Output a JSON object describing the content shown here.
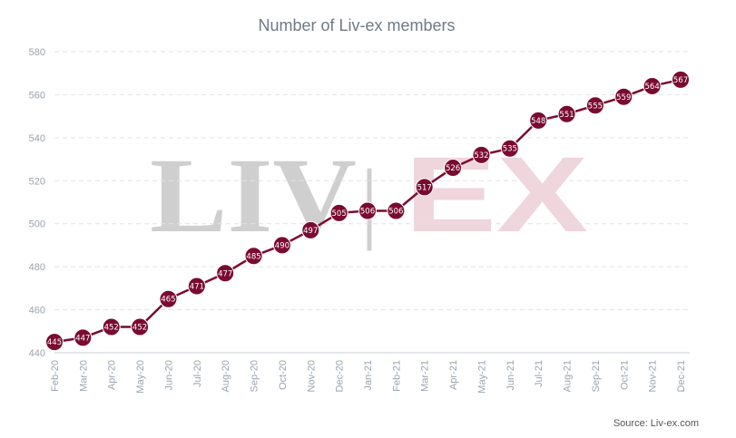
{
  "chart_data": {
    "type": "line",
    "title": "Number of Liv-ex members",
    "categories": [
      "Feb-20",
      "Mar-20",
      "Apr-20",
      "May-20",
      "Jun-20",
      "Jul-20",
      "Aug-20",
      "Sep-20",
      "Oct-20",
      "Nov-20",
      "Dec-20",
      "Jan-21",
      "Feb-21",
      "Mar-21",
      "Apr-21",
      "May-21",
      "Jun-21",
      "Jul-21",
      "Aug-21",
      "Sep-21",
      "Oct-21",
      "Nov-21",
      "Dec-21"
    ],
    "series": [
      {
        "values": [
          445,
          447,
          452,
          452,
          465,
          471,
          477,
          485,
          490,
          497,
          505,
          506,
          506,
          517,
          526,
          532,
          535,
          548,
          551,
          555,
          559,
          564,
          567
        ]
      }
    ],
    "ylim": [
      440,
      580
    ],
    "yticks": [
      440,
      460,
      480,
      500,
      520,
      540,
      560,
      580
    ],
    "grid": true,
    "data_labels": true,
    "line_color": "#7a0a31",
    "marker_color": "#7a0a31"
  },
  "watermark": {
    "left": "LIV",
    "separator": "|",
    "right": "EX"
  },
  "source": "Source: Liv-ex.com"
}
